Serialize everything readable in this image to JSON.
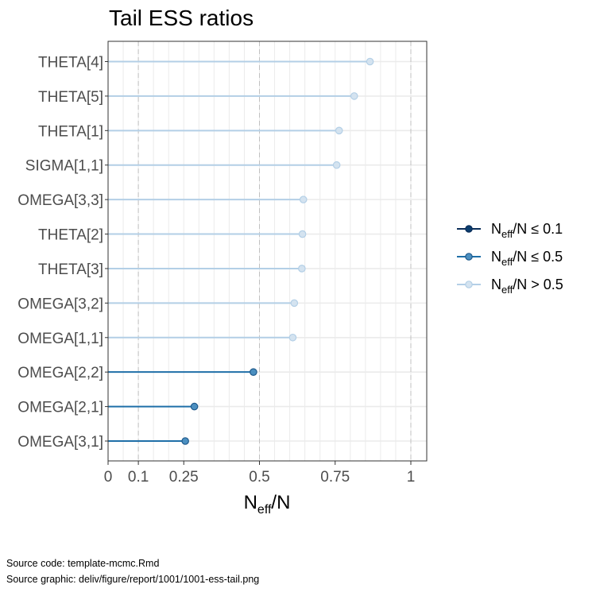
{
  "chart_data": {
    "type": "scatter",
    "title": "Tail ESS ratios",
    "xlabel": "N_eff/N",
    "ylabel": "",
    "xlim": [
      0,
      1.05
    ],
    "xticks": [
      {
        "value": 0,
        "label": "0"
      },
      {
        "value": 0.1,
        "label": "0.1"
      },
      {
        "value": 0.25,
        "label": "0.25"
      },
      {
        "value": 0.5,
        "label": "0.5"
      },
      {
        "value": 0.75,
        "label": "0.75"
      },
      {
        "value": 1,
        "label": "1"
      }
    ],
    "reference_lines": [
      0.1,
      0.5,
      1
    ],
    "grid": true,
    "legend_position": "right",
    "categories": [
      "THETA[4]",
      "THETA[5]",
      "THETA[1]",
      "SIGMA[1,1]",
      "OMEGA[3,3]",
      "THETA[2]",
      "THETA[3]",
      "OMEGA[3,2]",
      "OMEGA[1,1]",
      "OMEGA[2,2]",
      "OMEGA[2,1]",
      "OMEGA[3,1]"
    ],
    "values": [
      0.865,
      0.813,
      0.763,
      0.755,
      0.645,
      0.642,
      0.64,
      0.615,
      0.61,
      0.48,
      0.285,
      0.255
    ],
    "legend": [
      {
        "label_main": "N",
        "label_sub": "eff",
        "label_rest": "/N ≤ 0.1",
        "line_color": "#0b2e59",
        "fill_color": "#0b3d6e",
        "stroke_color": "#0b2e59"
      },
      {
        "label_main": "N",
        "label_sub": "eff",
        "label_rest": "/N ≤ 0.5",
        "line_color": "#1f6fa8",
        "fill_color": "#4b8fc0",
        "stroke_color": "#1f5a8c"
      },
      {
        "label_main": "N",
        "label_sub": "eff",
        "label_rest": "/N > 0.5",
        "line_color": "#b3cfe6",
        "fill_color": "#d4e3f0",
        "stroke_color": "#b3cfe6"
      }
    ]
  },
  "xlabel_parts": {
    "main": "N",
    "sub": "eff",
    "rest": "/N"
  },
  "footer": {
    "line1": "Source code: template-mcmc.Rmd",
    "line2": "Source graphic: deliv/figure/report/1001/1001-ess-tail.png"
  }
}
